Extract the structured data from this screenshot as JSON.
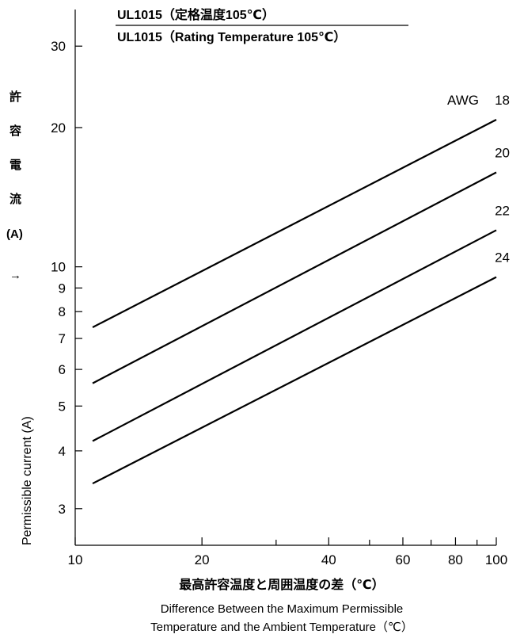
{
  "chart_data": {
    "type": "line",
    "title": "UL1015（定格温度105℃）",
    "subtitle": "UL1015（Rating Temperature 105℃）",
    "x_scale": "log",
    "y_scale": "log",
    "xlim": [
      10,
      100
    ],
    "ylim": [
      2.5,
      36
    ],
    "x_ticks": [
      10,
      20,
      40,
      60,
      80,
      100
    ],
    "x_minor_ticks": [
      30,
      50,
      70,
      90
    ],
    "y_ticks": [
      3,
      4,
      5,
      6,
      7,
      8,
      9,
      10,
      20,
      30
    ],
    "ylabel_jp": [
      "許",
      "容",
      "電",
      "流",
      "(A)",
      "→"
    ],
    "ylabel_en": "Permissible current (A)",
    "xlabel_jp": "最高許容温度と周囲温度の差（℃）",
    "xlabel_en_line1": "Difference Between the Maximum Permissible",
    "xlabel_en_line2": "Temperature and the Ambient Temperature（℃）",
    "legend_prefix": "AWG",
    "grid": false,
    "series": [
      {
        "name": "18",
        "x": [
          11,
          100
        ],
        "y": [
          7.4,
          20.8
        ]
      },
      {
        "name": "20",
        "x": [
          11,
          100
        ],
        "y": [
          5.6,
          16.0
        ]
      },
      {
        "name": "22",
        "x": [
          11,
          100
        ],
        "y": [
          4.2,
          12.0
        ]
      },
      {
        "name": "24",
        "x": [
          11,
          100
        ],
        "y": [
          3.4,
          9.5
        ]
      }
    ]
  }
}
